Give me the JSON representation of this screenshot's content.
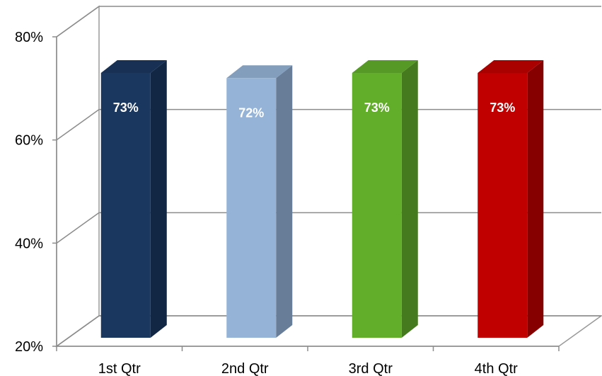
{
  "chart_data": {
    "type": "bar",
    "style": "3d",
    "categories": [
      "1st Qtr",
      "2nd Qtr",
      "3rd Qtr",
      "4th Qtr"
    ],
    "values": [
      73,
      72,
      73,
      73
    ],
    "data_labels": [
      "73%",
      "72%",
      "73%",
      "73%"
    ],
    "bar_colors": [
      "#1a375f",
      "#95b3d7",
      "#62ae2b",
      "#c00000"
    ],
    "yticks": [
      20,
      40,
      60,
      80
    ],
    "ytick_labels": [
      "20%",
      "40%",
      "60%",
      "80%"
    ],
    "ylim": [
      20,
      80
    ],
    "grid": true,
    "legend": "none"
  }
}
